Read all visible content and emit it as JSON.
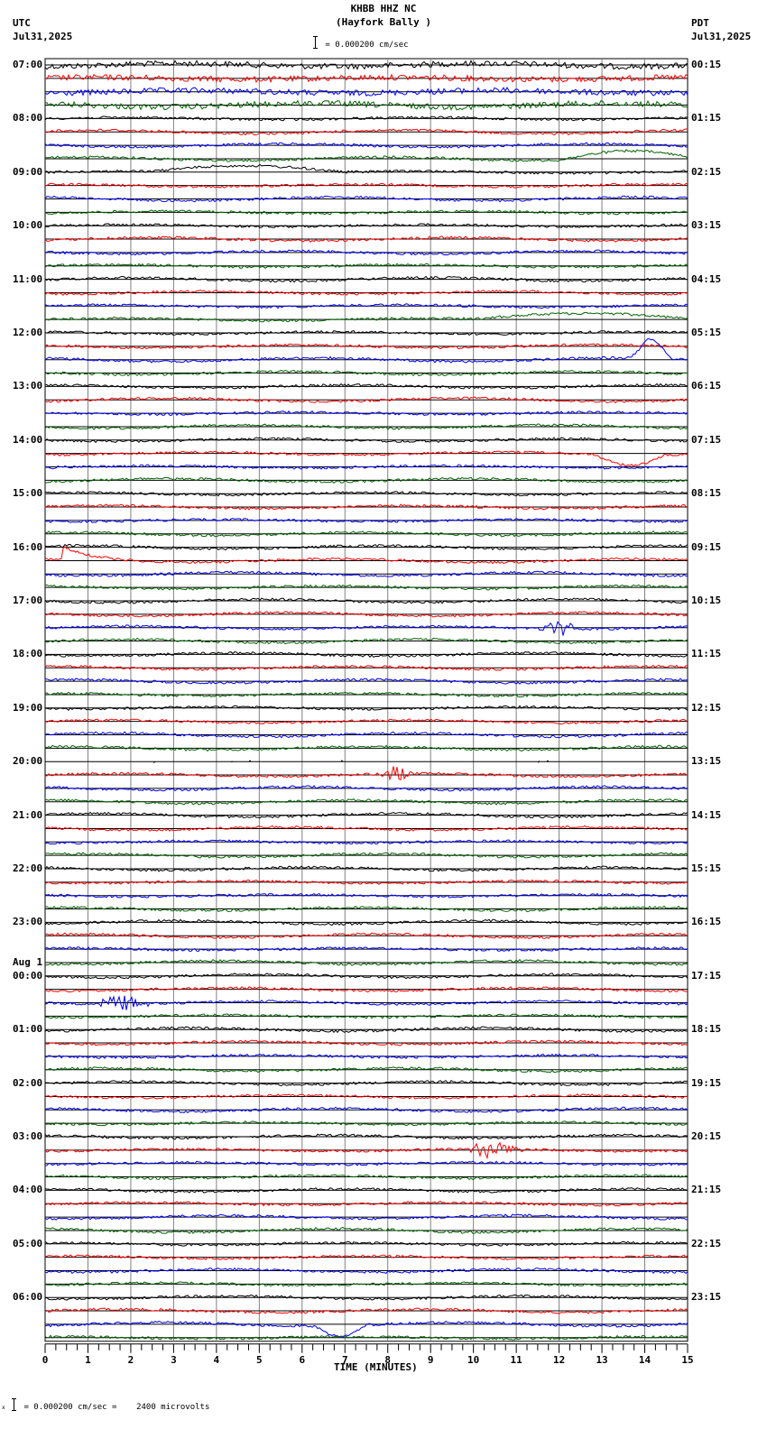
{
  "header": {
    "station": "KHBB HHZ NC",
    "location": "(Hayfork Bally )",
    "scale_text": "= 0.000200 cm/sec",
    "left_tz": "UTC",
    "left_date": "Jul31,2025",
    "right_tz": "PDT",
    "right_date": "Jul31,2025"
  },
  "footer": {
    "scale_prefix": "x",
    "scale_text": "= 0.000200 cm/sec =    2400 microvolts"
  },
  "chart_data": {
    "type": "line",
    "title": "KHBB HHZ NC (Hayfork Bally ) helicorder",
    "xlabel": "TIME (MINUTES)",
    "ylabel": "",
    "x_ticks": [
      "0",
      "1",
      "2",
      "3",
      "4",
      "5",
      "6",
      "7",
      "8",
      "9",
      "10",
      "11",
      "12",
      "13",
      "14",
      "15"
    ],
    "xlim": [
      0,
      15
    ],
    "grid": true,
    "trace_colors": [
      "#000000",
      "#ff0000",
      "#0000ff",
      "#006400"
    ],
    "traces_per_hour": 4,
    "minutes_per_trace": 15,
    "utc_labels": [
      "07:00",
      "08:00",
      "09:00",
      "10:00",
      "11:00",
      "12:00",
      "13:00",
      "14:00",
      "15:00",
      "16:00",
      "17:00",
      "18:00",
      "19:00",
      "20:00",
      "21:00",
      "22:00",
      "23:00",
      "00:00",
      "01:00",
      "02:00",
      "03:00",
      "04:00",
      "05:00",
      "06:00"
    ],
    "utc_date_change": {
      "index": 17,
      "label": "Aug 1"
    },
    "pdt_labels": [
      "00:15",
      "01:15",
      "02:15",
      "03:15",
      "04:15",
      "05:15",
      "06:15",
      "07:15",
      "08:15",
      "09:15",
      "10:15",
      "11:15",
      "12:15",
      "13:15",
      "14:15",
      "15:15",
      "16:15",
      "17:15",
      "18:15",
      "19:15",
      "20:15",
      "21:15",
      "22:15",
      "23:15"
    ],
    "amplitude_scale": "0.000200 cm/sec = 2400 microvolts",
    "notable_events": [
      {
        "trace": 0,
        "desc": "high-amplitude microseism oscillation"
      },
      {
        "trace": 7,
        "minute_range": [
          12,
          15
        ],
        "desc": "long-period swell"
      },
      {
        "trace": 8,
        "minute_range": [
          2.5,
          7
        ],
        "desc": "long-period swell"
      },
      {
        "trace": 19,
        "minute_range": [
          10,
          15
        ],
        "desc": "long-period swell"
      },
      {
        "trace": 22,
        "minute_range": [
          13.5,
          14.8
        ],
        "desc": "large positive pulse (blue)"
      },
      {
        "trace": 29,
        "minute_range": [
          12.8,
          14.5
        ],
        "desc": "large negative excursion (red)"
      },
      {
        "trace": 37,
        "minute_range": [
          0.4,
          3
        ],
        "desc": "spike and decay (red)"
      },
      {
        "trace": 42,
        "minute_range": [
          11.5,
          12.5
        ],
        "desc": "local earthquake burst (blue)"
      },
      {
        "trace": 52,
        "minute_range": [
          0,
          15
        ],
        "desc": "data gaps / dropouts"
      },
      {
        "trace": 53,
        "minute_range": [
          7.8,
          8.6
        ],
        "desc": "burst (red)"
      },
      {
        "trace": 70,
        "minute_range": [
          1,
          2.5
        ],
        "desc": "noise burst (green)"
      },
      {
        "trace": 81,
        "minute_range": [
          9.5,
          11.2
        ],
        "desc": "earthquake arrivals (black/red/blue)"
      },
      {
        "trace": 94,
        "minute_range": [
          6.3,
          7.5
        ],
        "desc": "dip (blue)"
      }
    ]
  }
}
